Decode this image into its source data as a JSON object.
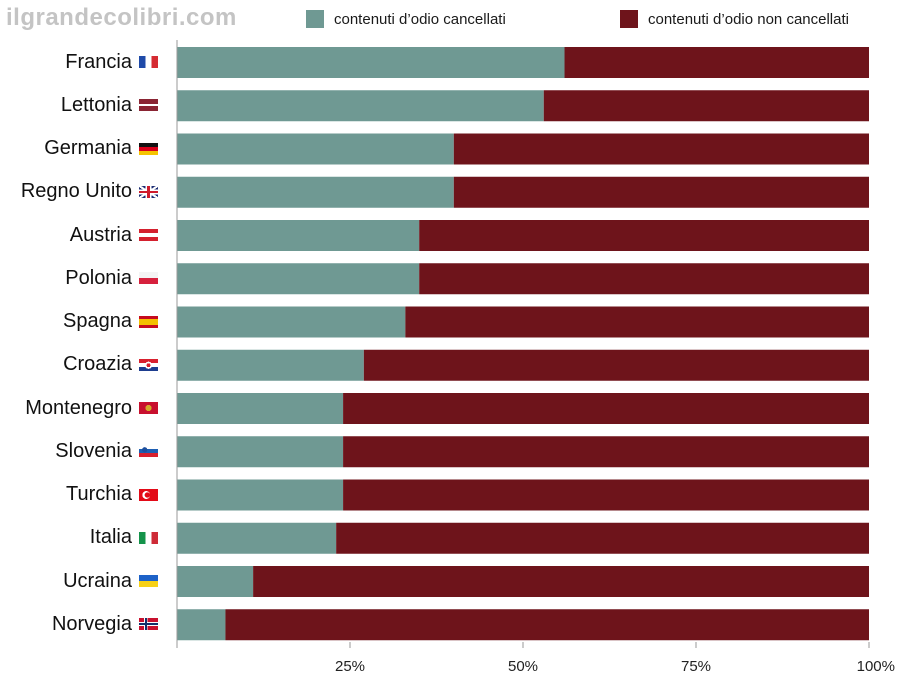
{
  "watermark": "ilgrandecolibri.com",
  "colors": {
    "deleted": "#6f9993",
    "not_deleted": "#6e141b",
    "axis": "#9a9a9a"
  },
  "chart_data": {
    "type": "bar",
    "orientation": "horizontal",
    "stacked": true,
    "title": "",
    "xlabel": "",
    "ylabel": "",
    "xlim": [
      0,
      100
    ],
    "xticks": [
      "25%",
      "50%",
      "75%",
      "100%"
    ],
    "grid": false,
    "legend_position": "top",
    "categories": [
      "Francia",
      "Lettonia",
      "Germania",
      "Regno Unito",
      "Austria",
      "Polonia",
      "Spagna",
      "Croazia",
      "Montenegro",
      "Slovenia",
      "Turchia",
      "Italia",
      "Ucraina",
      "Norvegia"
    ],
    "flags": [
      "france-flag-icon",
      "latvia-flag-icon",
      "germany-flag-icon",
      "uk-flag-icon",
      "austria-flag-icon",
      "poland-flag-icon",
      "spain-flag-icon",
      "croatia-flag-icon",
      "montenegro-flag-icon",
      "slovenia-flag-icon",
      "turkey-flag-icon",
      "italy-flag-icon",
      "ukraine-flag-icon",
      "norway-flag-icon"
    ],
    "series": [
      {
        "name": "contenuti d’odio cancellati",
        "color": "#6f9993",
        "values": [
          56,
          53,
          40,
          40,
          35,
          35,
          33,
          27,
          24,
          24,
          24,
          23,
          11,
          7
        ]
      },
      {
        "name": "contenuti d’odio non cancellati",
        "color": "#6e141b",
        "values": [
          44,
          47,
          60,
          60,
          65,
          65,
          67,
          73,
          76,
          76,
          76,
          77,
          89,
          93
        ]
      }
    ]
  }
}
